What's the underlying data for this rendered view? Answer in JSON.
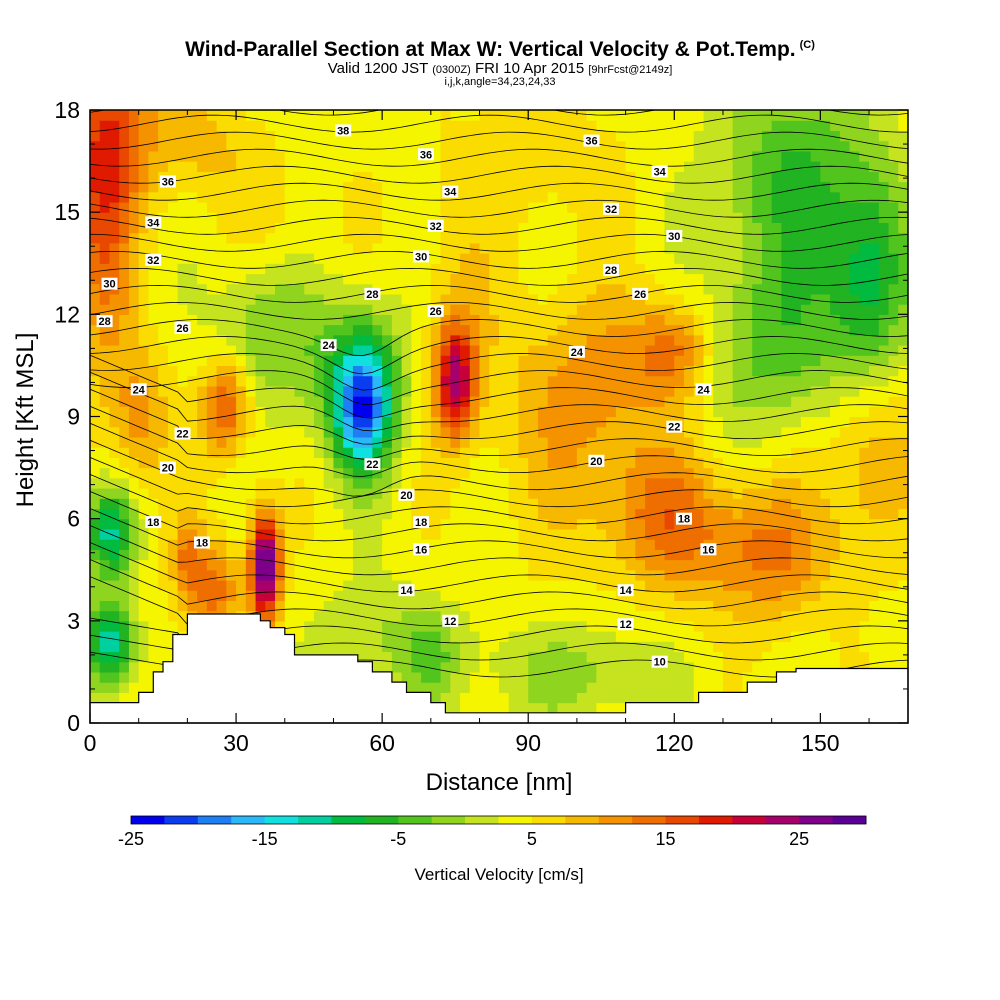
{
  "title": "Wind-Parallel Section at Max W: Vertical Velocity & Pot.Temp.",
  "copyright": "(C)",
  "subtitle_valid": "Valid 1200 JST",
  "subtitle_z": "(0300Z)",
  "subtitle_date": "FRI 10 Apr 2015",
  "subtitle_fcst": "[9hrFcst@2149z]",
  "subtitle2": "i,j,k,angle=34,23,24,33",
  "chart_data": {
    "type": "heatmap",
    "xlabel": "Distance [nm]",
    "ylabel": "Height [Kft MSL]",
    "xlim": [
      0,
      168
    ],
    "ylim": [
      0,
      18
    ],
    "x_ticks": [
      "0",
      "30",
      "60",
      "90",
      "120",
      "150"
    ],
    "y_ticks": [
      "0",
      "3",
      "6",
      "9",
      "12",
      "15",
      "18"
    ],
    "colorbar": {
      "label": "Vertical Velocity [cm/s]",
      "tick_labels": [
        "-25",
        "-15",
        "-5",
        "5",
        "15",
        "25"
      ],
      "colors": [
        "#0000ee",
        "#0a3cf0",
        "#1e7ff5",
        "#2ab8f8",
        "#10e0e0",
        "#00d0a0",
        "#00bb40",
        "#21b321",
        "#52c41e",
        "#8fd41e",
        "#c6e320",
        "#f5f500",
        "#fadc00",
        "#f7b800",
        "#f59200",
        "#ef6e00",
        "#e84800",
        "#e01a00",
        "#c8003a",
        "#a8006a",
        "#7e008a",
        "#5a0096"
      ]
    },
    "terrain_kft": [
      [
        0,
        0.6
      ],
      [
        1,
        0.6
      ],
      [
        1,
        0.6
      ],
      [
        7,
        0.6
      ],
      [
        7,
        0.6
      ],
      [
        10,
        0.6
      ],
      [
        10,
        0.9
      ],
      [
        13,
        0.9
      ],
      [
        13,
        1.5
      ],
      [
        15,
        1.5
      ],
      [
        15,
        1.8
      ],
      [
        17,
        1.8
      ],
      [
        17,
        2.6
      ],
      [
        20,
        2.6
      ],
      [
        20,
        3.2
      ],
      [
        35,
        3.2
      ],
      [
        35,
        3.0
      ],
      [
        37,
        3.0
      ],
      [
        37,
        2.8
      ],
      [
        40,
        2.8
      ],
      [
        40,
        2.6
      ],
      [
        42,
        2.6
      ],
      [
        42,
        2.0
      ],
      [
        55,
        2.0
      ],
      [
        55,
        1.8
      ],
      [
        58,
        1.8
      ],
      [
        58,
        1.5
      ],
      [
        62,
        1.5
      ],
      [
        62,
        1.2
      ],
      [
        65,
        1.2
      ],
      [
        65,
        0.9
      ],
      [
        70,
        0.9
      ],
      [
        70,
        0.6
      ],
      [
        73,
        0.6
      ],
      [
        73,
        0.3
      ],
      [
        110,
        0.3
      ],
      [
        110,
        0.6
      ],
      [
        125,
        0.6
      ],
      [
        125,
        0.9
      ],
      [
        135,
        0.9
      ],
      [
        135,
        1.2
      ],
      [
        141,
        1.2
      ],
      [
        141,
        1.5
      ],
      [
        145,
        1.5
      ],
      [
        145,
        1.6
      ],
      [
        168,
        1.6
      ]
    ],
    "contour_labels": [
      {
        "label": "38",
        "x": 52,
        "y": 17.4
      },
      {
        "label": "36",
        "x": 69,
        "y": 16.7
      },
      {
        "label": "34",
        "x": 74,
        "y": 15.6
      },
      {
        "label": "32",
        "x": 71,
        "y": 14.6
      },
      {
        "label": "30",
        "x": 68,
        "y": 13.7
      },
      {
        "label": "28",
        "x": 58,
        "y": 12.6
      },
      {
        "label": "26",
        "x": 71,
        "y": 12.1
      },
      {
        "label": "24",
        "x": 49,
        "y": 11.1
      },
      {
        "label": "36",
        "x": 103,
        "y": 17.1
      },
      {
        "label": "34",
        "x": 117,
        "y": 16.2
      },
      {
        "label": "32",
        "x": 107,
        "y": 15.1
      },
      {
        "label": "30",
        "x": 120,
        "y": 14.3
      },
      {
        "label": "28",
        "x": 107,
        "y": 13.3
      },
      {
        "label": "26",
        "x": 113,
        "y": 12.6
      },
      {
        "label": "24",
        "x": 100,
        "y": 10.9
      },
      {
        "label": "24",
        "x": 126,
        "y": 9.8
      },
      {
        "label": "22",
        "x": 120,
        "y": 8.7
      },
      {
        "label": "20",
        "x": 104,
        "y": 7.7
      },
      {
        "label": "18",
        "x": 122,
        "y": 6.0
      },
      {
        "label": "16",
        "x": 127,
        "y": 5.1
      },
      {
        "label": "14",
        "x": 110,
        "y": 3.9
      },
      {
        "label": "12",
        "x": 110,
        "y": 2.9
      },
      {
        "label": "10",
        "x": 117,
        "y": 1.8
      },
      {
        "label": "36",
        "x": 16,
        "y": 15.9
      },
      {
        "label": "34",
        "x": 13,
        "y": 14.7
      },
      {
        "label": "32",
        "x": 13,
        "y": 13.6
      },
      {
        "label": "30",
        "x": 4,
        "y": 12.9
      },
      {
        "label": "28",
        "x": 3,
        "y": 11.8
      },
      {
        "label": "26",
        "x": 19,
        "y": 11.6
      },
      {
        "label": "24",
        "x": 10,
        "y": 9.8
      },
      {
        "label": "22",
        "x": 19,
        "y": 8.5
      },
      {
        "label": "20",
        "x": 16,
        "y": 7.5
      },
      {
        "label": "18",
        "x": 13,
        "y": 5.9
      },
      {
        "label": "18",
        "x": 23,
        "y": 5.3
      },
      {
        "label": "22",
        "x": 58,
        "y": 7.6
      },
      {
        "label": "20",
        "x": 65,
        "y": 6.7
      },
      {
        "label": "18",
        "x": 68,
        "y": 5.9
      },
      {
        "label": "16",
        "x": 68,
        "y": 5.1
      },
      {
        "label": "14",
        "x": 65,
        "y": 3.9
      },
      {
        "label": "12",
        "x": 74,
        "y": 3.0
      }
    ]
  }
}
